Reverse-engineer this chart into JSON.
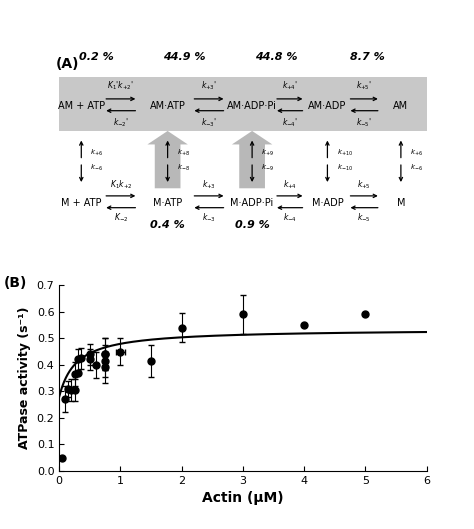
{
  "panel_A_label": "(A)",
  "panel_B_label": "(B)",
  "percentages_top": [
    "0.2 %",
    "44.9 %",
    "44.8 %",
    "8.7 %"
  ],
  "percentages_bottom": [
    "0.4 %",
    "0.9 %"
  ],
  "top_row_states": [
    "AM + ATP",
    "AM·ATP",
    "AM·ADP·Pi",
    "AM·ADP",
    "AM"
  ],
  "bottom_row_states": [
    "M + ATP",
    "M·ATP",
    "M·ADP·Pi",
    "M·ADP",
    "M"
  ],
  "scatter_x": [
    0.05,
    0.1,
    0.15,
    0.2,
    0.25,
    0.25,
    0.3,
    0.3,
    0.35,
    0.5,
    0.5,
    0.6,
    0.75,
    0.75,
    0.75,
    0.75,
    1.0,
    1.5,
    2.0,
    3.0,
    4.0,
    5.0
  ],
  "scatter_y": [
    0.05,
    0.27,
    0.31,
    0.305,
    0.305,
    0.365,
    0.37,
    0.42,
    0.425,
    0.42,
    0.44,
    0.4,
    0.39,
    0.415,
    0.44,
    0.44,
    0.45,
    0.415,
    0.54,
    0.59,
    0.55,
    0.59
  ],
  "scatter_yerr": [
    0.0,
    0.05,
    0.03,
    0.04,
    0.04,
    0.045,
    0.0,
    0.04,
    0.04,
    0.04,
    0.04,
    0.05,
    0.06,
    0.06,
    0.06,
    0.06,
    0.05,
    0.06,
    0.055,
    0.075,
    0.0,
    0.0
  ],
  "scatter_xerr": [
    0.0,
    0.0,
    0.0,
    0.0,
    0.0,
    0.0,
    0.0,
    0.0,
    0.0,
    0.0,
    0.0,
    0.0,
    0.0,
    0.0,
    0.0,
    0.0,
    0.07,
    0.0,
    0.0,
    0.0,
    0.0,
    0.0
  ],
  "curve_vmax": 0.255,
  "curve_km": 0.28,
  "curve_basal": 0.28,
  "xlabel": "Actin (μM)",
  "ylabel": "ATPase activity (s⁻¹)",
  "xlim": [
    0,
    6
  ],
  "ylim": [
    0.0,
    0.7
  ],
  "yticks": [
    0.0,
    0.1,
    0.2,
    0.3,
    0.4,
    0.5,
    0.6,
    0.7
  ],
  "xticks": [
    0,
    1,
    2,
    3,
    4,
    5,
    6
  ],
  "gray_bg": "#c8c8c8",
  "big_arrow_color": "#b8b8b8"
}
